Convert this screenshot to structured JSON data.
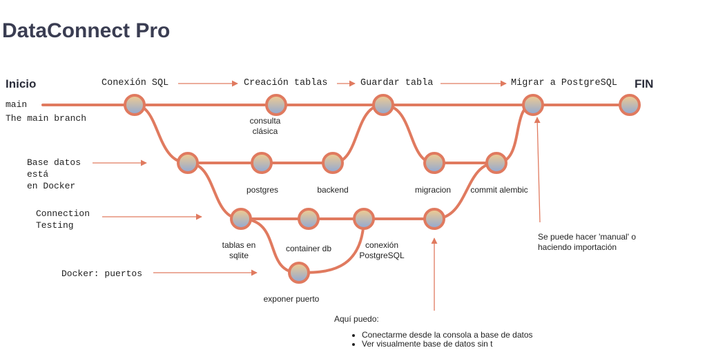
{
  "title": "DataConnect Pro",
  "inicio": "Inicio",
  "fin": "FIN",
  "main_branch": {
    "name": "main",
    "description": "The main branch"
  },
  "steps": [
    "Conexión SQL",
    "Creación tablas",
    "Guardar tabla",
    "Migrar a PostgreSQL"
  ],
  "side_notes": {
    "base_datos": "Base datos\nestá\nen Docker",
    "connection": "Connection\nTesting",
    "docker": "Docker: puertos"
  },
  "commit_labels": {
    "consulta": "consulta\nclásica",
    "postgres": "postgres",
    "backend": "backend",
    "migracion": "migracion",
    "commit_alembic": "commit alembic",
    "tablas_sqlite": "tablas en\nsqlite",
    "container_db": "container db",
    "conexion_pg": "conexión\nPostgreSQL",
    "exponer": "exponer puerto"
  },
  "annotation_manual": "Se puede hacer 'manual' o\nhaciendo importación",
  "aqui": {
    "heading": "Aquí puedo:",
    "items": [
      "Conectarme desde la consola a base de datos",
      "Ver visualmente base de datos sin t"
    ]
  },
  "colors": {
    "line": "#e07a5f",
    "node_top": "#f2cc8f",
    "node_bottom": "#8fa8d4",
    "title": "#3a3d52"
  }
}
